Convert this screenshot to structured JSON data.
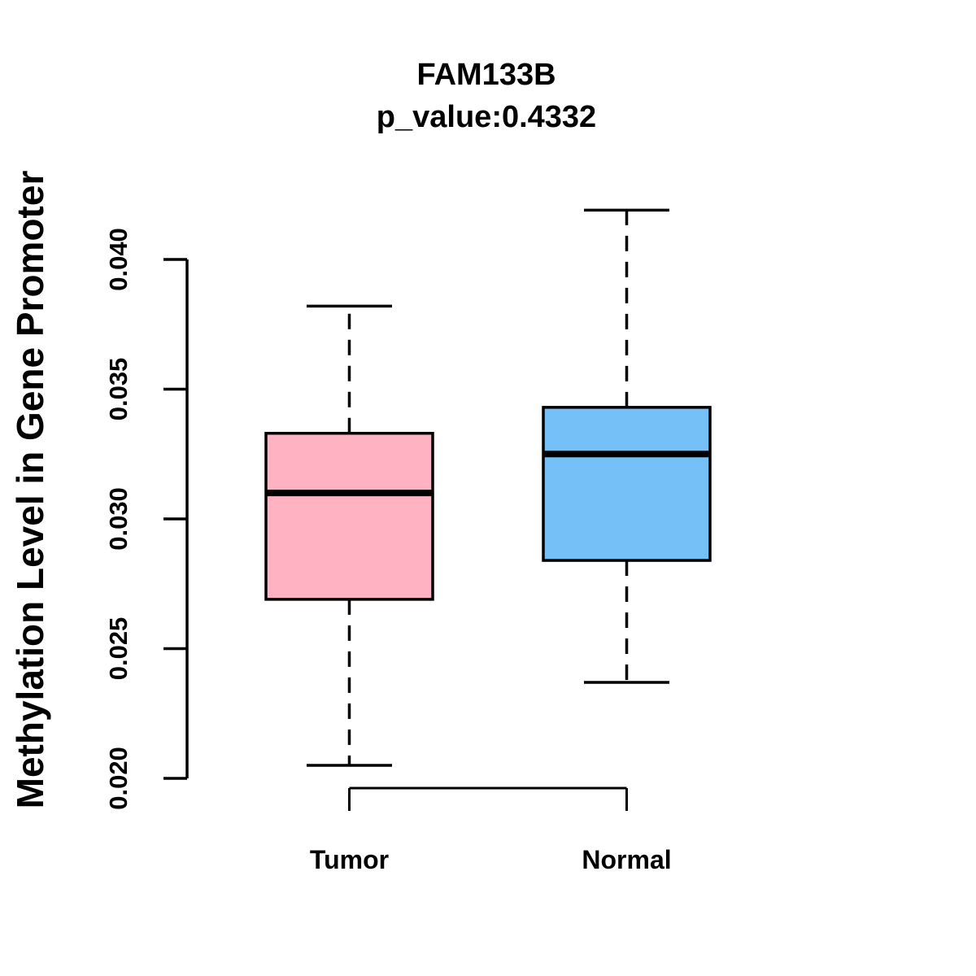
{
  "chart_data": {
    "type": "boxplot",
    "title": "FAM133B",
    "subtitle": "p_value:0.4332",
    "p_value": 0.4332,
    "ylabel": "Methylation Level in Gene Promoter",
    "xlabel": "",
    "ylim": [
      0.02,
      0.04
    ],
    "yticks": [
      "0.020",
      "0.025",
      "0.030",
      "0.035",
      "0.040"
    ],
    "grid": false,
    "legend": "none",
    "whisker_style": "dashed",
    "categories": [
      "Tumor",
      "Normal"
    ],
    "series": [
      {
        "name": "Tumor",
        "fill_color": "#FFB3C2",
        "whisker_low": 0.0205,
        "q1": 0.0269,
        "median": 0.031,
        "q3": 0.0333,
        "whisker_high": 0.0382
      },
      {
        "name": "Normal",
        "fill_color": "#76C0F8",
        "whisker_low": 0.0237,
        "q1": 0.0284,
        "median": 0.0325,
        "q3": 0.0343,
        "whisker_high": 0.0419
      }
    ],
    "colors": {
      "box_border": "#000000",
      "median_line": "#000000",
      "axis": "#000000",
      "background": "#FFFFFF",
      "text": "#000000"
    }
  }
}
